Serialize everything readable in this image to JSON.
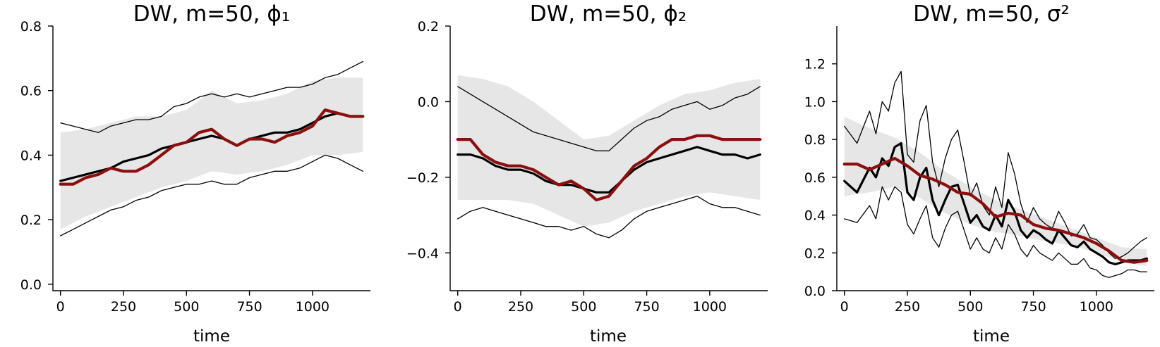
{
  "chart_data": [
    {
      "type": "line",
      "title": "DW, m=50, ϕ₁",
      "xlabel": "time",
      "ylabel": "",
      "xlim": [
        -30,
        1230
      ],
      "ylim": [
        -0.02,
        0.8
      ],
      "xticks": [
        0,
        250,
        500,
        750,
        1000
      ],
      "xtick_labels": [
        "0",
        "250",
        "500",
        "750",
        "1000"
      ],
      "yticks": [
        0.0,
        0.2,
        0.4,
        0.6,
        0.8
      ],
      "ytick_labels": [
        "0.0",
        "0.2",
        "0.4",
        "0.6",
        "0.8"
      ],
      "grid": false,
      "band": {
        "color": "#e6e6e6",
        "x": [
          0,
          100,
          200,
          300,
          400,
          500,
          600,
          700,
          800,
          900,
          1000,
          1100,
          1200
        ],
        "lower": [
          0.17,
          0.21,
          0.24,
          0.27,
          0.3,
          0.32,
          0.35,
          0.34,
          0.35,
          0.37,
          0.4,
          0.4,
          0.41
        ],
        "upper": [
          0.47,
          0.48,
          0.5,
          0.52,
          0.52,
          0.54,
          0.6,
          0.56,
          0.57,
          0.59,
          0.63,
          0.64,
          0.64
        ]
      },
      "series": [
        {
          "color": "#000000",
          "width": 1.3,
          "x": [
            0,
            50,
            100,
            150,
            200,
            250,
            300,
            350,
            400,
            450,
            500,
            550,
            600,
            650,
            700,
            750,
            800,
            850,
            900,
            950,
            1000,
            1050,
            1100,
            1150,
            1200
          ],
          "y": [
            0.5,
            0.49,
            0.48,
            0.47,
            0.49,
            0.5,
            0.51,
            0.51,
            0.52,
            0.55,
            0.56,
            0.58,
            0.59,
            0.58,
            0.59,
            0.58,
            0.59,
            0.6,
            0.61,
            0.61,
            0.62,
            0.64,
            0.65,
            0.67,
            0.69
          ]
        },
        {
          "color": "#000000",
          "width": 1.3,
          "x": [
            0,
            50,
            100,
            150,
            200,
            250,
            300,
            350,
            400,
            450,
            500,
            550,
            600,
            650,
            700,
            750,
            800,
            850,
            900,
            950,
            1000,
            1050,
            1100,
            1150,
            1200
          ],
          "y": [
            0.15,
            0.17,
            0.19,
            0.21,
            0.23,
            0.24,
            0.26,
            0.27,
            0.29,
            0.3,
            0.31,
            0.31,
            0.32,
            0.31,
            0.31,
            0.33,
            0.34,
            0.35,
            0.35,
            0.36,
            0.38,
            0.4,
            0.39,
            0.37,
            0.35
          ]
        },
        {
          "color": "#000000",
          "width": 3.2,
          "x": [
            0,
            50,
            100,
            150,
            200,
            250,
            300,
            350,
            400,
            450,
            500,
            550,
            600,
            650,
            700,
            750,
            800,
            850,
            900,
            950,
            1000,
            1050,
            1100,
            1150,
            1200
          ],
          "y": [
            0.32,
            0.33,
            0.34,
            0.35,
            0.36,
            0.38,
            0.39,
            0.4,
            0.42,
            0.43,
            0.44,
            0.45,
            0.46,
            0.45,
            0.43,
            0.45,
            0.46,
            0.47,
            0.47,
            0.48,
            0.5,
            0.52,
            0.53,
            0.52,
            0.52
          ]
        },
        {
          "color": "#8b0f0f",
          "width": 4.2,
          "x": [
            0,
            50,
            100,
            150,
            200,
            250,
            300,
            350,
            400,
            450,
            500,
            550,
            600,
            650,
            700,
            750,
            800,
            850,
            900,
            950,
            1000,
            1050,
            1100,
            1150,
            1200
          ],
          "y": [
            0.31,
            0.31,
            0.33,
            0.34,
            0.36,
            0.35,
            0.35,
            0.37,
            0.4,
            0.43,
            0.44,
            0.47,
            0.48,
            0.45,
            0.43,
            0.45,
            0.45,
            0.44,
            0.46,
            0.47,
            0.49,
            0.54,
            0.53,
            0.52,
            0.52
          ]
        }
      ]
    },
    {
      "type": "line",
      "title": "DW, m=50, ϕ₂",
      "xlabel": "time",
      "ylabel": "",
      "xlim": [
        -30,
        1230
      ],
      "ylim": [
        -0.5,
        0.2
      ],
      "xticks": [
        0,
        250,
        500,
        750,
        1000
      ],
      "xtick_labels": [
        "0",
        "250",
        "500",
        "750",
        "1000"
      ],
      "yticks": [
        -0.4,
        -0.2,
        0.0,
        0.2
      ],
      "ytick_labels": [
        "−0.4",
        "−0.2",
        "0.0",
        "0.2"
      ],
      "grid": false,
      "band": {
        "color": "#e6e6e6",
        "x": [
          0,
          100,
          200,
          300,
          400,
          500,
          600,
          700,
          800,
          900,
          1000,
          1100,
          1200
        ],
        "lower": [
          -0.26,
          -0.26,
          -0.26,
          -0.27,
          -0.3,
          -0.33,
          -0.32,
          -0.29,
          -0.27,
          -0.25,
          -0.24,
          -0.25,
          -0.26
        ],
        "upper": [
          0.07,
          0.06,
          0.04,
          0.0,
          -0.05,
          -0.1,
          -0.09,
          -0.05,
          -0.01,
          0.02,
          0.03,
          0.05,
          0.06
        ]
      },
      "series": [
        {
          "color": "#000000",
          "width": 1.3,
          "x": [
            0,
            50,
            100,
            150,
            200,
            250,
            300,
            350,
            400,
            450,
            500,
            550,
            600,
            650,
            700,
            750,
            800,
            850,
            900,
            950,
            1000,
            1050,
            1100,
            1150,
            1200
          ],
          "y": [
            0.04,
            0.02,
            0.0,
            -0.02,
            -0.04,
            -0.06,
            -0.08,
            -0.09,
            -0.1,
            -0.11,
            -0.12,
            -0.13,
            -0.13,
            -0.1,
            -0.07,
            -0.05,
            -0.04,
            -0.02,
            -0.01,
            0.0,
            -0.02,
            -0.01,
            0.01,
            0.02,
            0.04
          ]
        },
        {
          "color": "#000000",
          "width": 1.3,
          "x": [
            0,
            50,
            100,
            150,
            200,
            250,
            300,
            350,
            400,
            450,
            500,
            550,
            600,
            650,
            700,
            750,
            800,
            850,
            900,
            950,
            1000,
            1050,
            1100,
            1150,
            1200
          ],
          "y": [
            -0.31,
            -0.29,
            -0.28,
            -0.29,
            -0.3,
            -0.31,
            -0.32,
            -0.33,
            -0.33,
            -0.34,
            -0.33,
            -0.35,
            -0.36,
            -0.34,
            -0.31,
            -0.29,
            -0.28,
            -0.27,
            -0.26,
            -0.25,
            -0.27,
            -0.28,
            -0.28,
            -0.29,
            -0.3
          ]
        },
        {
          "color": "#000000",
          "width": 3.2,
          "x": [
            0,
            50,
            100,
            150,
            200,
            250,
            300,
            350,
            400,
            450,
            500,
            550,
            600,
            650,
            700,
            750,
            800,
            850,
            900,
            950,
            1000,
            1050,
            1100,
            1150,
            1200
          ],
          "y": [
            -0.14,
            -0.14,
            -0.15,
            -0.17,
            -0.18,
            -0.18,
            -0.19,
            -0.21,
            -0.22,
            -0.22,
            -0.23,
            -0.24,
            -0.24,
            -0.21,
            -0.18,
            -0.16,
            -0.15,
            -0.14,
            -0.13,
            -0.12,
            -0.13,
            -0.14,
            -0.14,
            -0.15,
            -0.14
          ]
        },
        {
          "color": "#8b0f0f",
          "width": 4.2,
          "x": [
            0,
            50,
            100,
            150,
            200,
            250,
            300,
            350,
            400,
            450,
            500,
            550,
            600,
            650,
            700,
            750,
            800,
            850,
            900,
            950,
            1000,
            1050,
            1100,
            1150,
            1200
          ],
          "y": [
            -0.1,
            -0.1,
            -0.14,
            -0.16,
            -0.17,
            -0.17,
            -0.18,
            -0.2,
            -0.22,
            -0.21,
            -0.23,
            -0.26,
            -0.25,
            -0.21,
            -0.17,
            -0.15,
            -0.12,
            -0.1,
            -0.1,
            -0.09,
            -0.09,
            -0.1,
            -0.1,
            -0.1,
            -0.1
          ]
        }
      ]
    },
    {
      "type": "line",
      "title": "DW, m=50, σ²",
      "xlabel": "time",
      "ylabel": "",
      "xlim": [
        -30,
        1230
      ],
      "ylim": [
        0.0,
        1.4
      ],
      "xticks": [
        0,
        250,
        500,
        750,
        1000
      ],
      "xtick_labels": [
        "0",
        "250",
        "500",
        "750",
        "1000"
      ],
      "yticks": [
        0.0,
        0.2,
        0.4,
        0.6,
        0.8,
        1.0,
        1.2
      ],
      "ytick_labels": [
        "0.0",
        "0.2",
        "0.4",
        "0.6",
        "0.8",
        "1.0",
        "1.2"
      ],
      "grid": false,
      "band": {
        "color": "#e6e6e6",
        "x": [
          0,
          100,
          200,
          300,
          400,
          500,
          600,
          700,
          800,
          900,
          1000,
          1100,
          1200
        ],
        "lower": [
          0.5,
          0.52,
          0.55,
          0.49,
          0.41,
          0.35,
          0.31,
          0.29,
          0.26,
          0.24,
          0.2,
          0.15,
          0.13
        ],
        "upper": [
          0.92,
          0.86,
          0.81,
          0.73,
          0.63,
          0.55,
          0.48,
          0.43,
          0.38,
          0.33,
          0.28,
          0.23,
          0.22
        ]
      },
      "series": [
        {
          "color": "#000000",
          "width": 1.3,
          "x": [
            0,
            50,
            100,
            125,
            150,
            175,
            200,
            225,
            250,
            275,
            300,
            325,
            350,
            375,
            400,
            425,
            450,
            475,
            500,
            525,
            550,
            575,
            600,
            625,
            650,
            675,
            700,
            725,
            750,
            775,
            800,
            825,
            850,
            875,
            900,
            925,
            950,
            975,
            1000,
            1025,
            1050,
            1075,
            1100,
            1125,
            1150,
            1175,
            1200
          ],
          "y": [
            0.87,
            0.78,
            0.95,
            0.83,
            1.0,
            0.95,
            1.1,
            1.16,
            0.72,
            0.68,
            0.9,
            0.98,
            0.68,
            0.55,
            0.7,
            0.8,
            0.85,
            0.68,
            0.5,
            0.57,
            0.45,
            0.4,
            0.55,
            0.44,
            0.73,
            0.62,
            0.46,
            0.36,
            0.44,
            0.38,
            0.35,
            0.33,
            0.42,
            0.36,
            0.29,
            0.3,
            0.35,
            0.28,
            0.27,
            0.24,
            0.2,
            0.17,
            0.18,
            0.2,
            0.23,
            0.26,
            0.28
          ]
        },
        {
          "color": "#000000",
          "width": 1.3,
          "x": [
            0,
            50,
            100,
            125,
            150,
            175,
            200,
            225,
            250,
            275,
            300,
            325,
            350,
            375,
            400,
            425,
            450,
            475,
            500,
            525,
            550,
            575,
            600,
            625,
            650,
            675,
            700,
            725,
            750,
            775,
            800,
            825,
            850,
            875,
            900,
            925,
            950,
            975,
            1000,
            1025,
            1050,
            1075,
            1100,
            1125,
            1150,
            1175,
            1200
          ],
          "y": [
            0.38,
            0.36,
            0.45,
            0.38,
            0.55,
            0.48,
            0.55,
            0.52,
            0.35,
            0.3,
            0.38,
            0.45,
            0.28,
            0.23,
            0.33,
            0.4,
            0.42,
            0.32,
            0.22,
            0.28,
            0.22,
            0.2,
            0.28,
            0.22,
            0.35,
            0.3,
            0.22,
            0.18,
            0.24,
            0.2,
            0.18,
            0.16,
            0.2,
            0.17,
            0.14,
            0.14,
            0.17,
            0.12,
            0.11,
            0.08,
            0.07,
            0.08,
            0.09,
            0.11,
            0.11,
            0.1,
            0.1
          ]
        },
        {
          "color": "#000000",
          "width": 3.2,
          "x": [
            0,
            50,
            100,
            125,
            150,
            175,
            200,
            225,
            250,
            275,
            300,
            325,
            350,
            375,
            400,
            425,
            450,
            475,
            500,
            525,
            550,
            575,
            600,
            625,
            650,
            675,
            700,
            725,
            750,
            775,
            800,
            825,
            850,
            875,
            900,
            925,
            950,
            975,
            1000,
            1025,
            1050,
            1075,
            1100,
            1125,
            1150,
            1175,
            1200
          ],
          "y": [
            0.58,
            0.52,
            0.65,
            0.6,
            0.7,
            0.66,
            0.76,
            0.78,
            0.52,
            0.48,
            0.6,
            0.65,
            0.48,
            0.4,
            0.48,
            0.55,
            0.56,
            0.46,
            0.36,
            0.4,
            0.34,
            0.32,
            0.4,
            0.34,
            0.48,
            0.42,
            0.32,
            0.28,
            0.32,
            0.3,
            0.27,
            0.25,
            0.32,
            0.28,
            0.24,
            0.23,
            0.26,
            0.22,
            0.2,
            0.18,
            0.15,
            0.14,
            0.15,
            0.16,
            0.16,
            0.16,
            0.17
          ]
        },
        {
          "color": "#8b0f0f",
          "width": 4.2,
          "x": [
            0,
            50,
            100,
            150,
            200,
            250,
            300,
            350,
            400,
            450,
            500,
            550,
            600,
            650,
            700,
            750,
            800,
            850,
            900,
            950,
            1000,
            1050,
            1100,
            1150,
            1200
          ],
          "y": [
            0.67,
            0.67,
            0.64,
            0.67,
            0.7,
            0.66,
            0.61,
            0.59,
            0.56,
            0.52,
            0.51,
            0.46,
            0.39,
            0.41,
            0.4,
            0.35,
            0.33,
            0.32,
            0.3,
            0.28,
            0.25,
            0.21,
            0.16,
            0.15,
            0.16
          ]
        }
      ]
    }
  ]
}
